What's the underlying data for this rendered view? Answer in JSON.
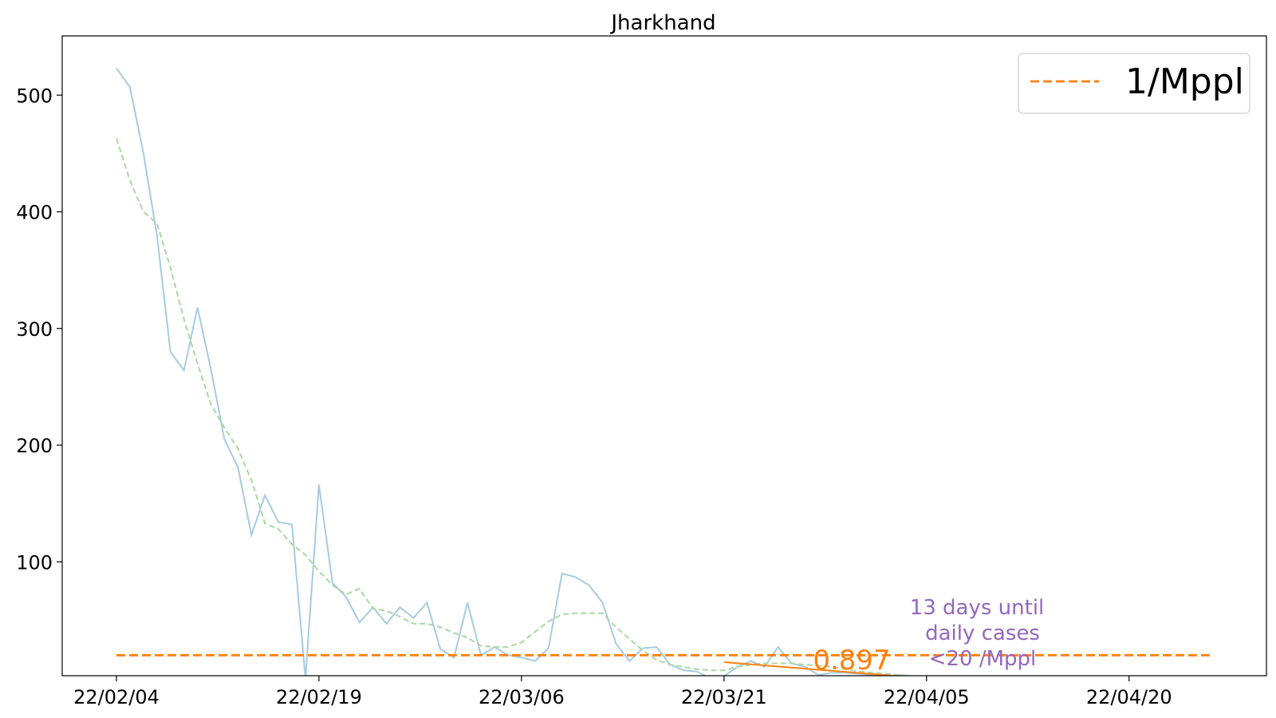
{
  "chart_data": {
    "type": "line",
    "title": "Jharkhand",
    "xlabel": "",
    "ylabel": "",
    "x_start": "22/02/04",
    "xlim_days": [
      -4,
      85
    ],
    "ylim": [
      0,
      550
    ],
    "y_ticks": [
      100,
      200,
      300,
      400,
      500
    ],
    "x_tick_days": [
      0,
      15,
      30,
      45,
      60,
      75
    ],
    "x_tick_labels": [
      "22/02/04",
      "22/02/19",
      "22/03/06",
      "22/03/21",
      "22/04/05",
      "22/04/20"
    ],
    "grid": false,
    "legend_position": "top-right",
    "series": [
      {
        "name": "",
        "color": "#a6cbe0",
        "style": "solid",
        "values": [
          523,
          507,
          450,
          380,
          280,
          264,
          318,
          265,
          205,
          181,
          123,
          157,
          134,
          132,
          0,
          166,
          82,
          70,
          48,
          61,
          47,
          61,
          52,
          65,
          25,
          18,
          65,
          20,
          27,
          20,
          18,
          15,
          26,
          90,
          87,
          80,
          65,
          30,
          15,
          26,
          27,
          12,
          7,
          6,
          0,
          2,
          10,
          15,
          10,
          27,
          13,
          10,
          3,
          5,
          5,
          4,
          3,
          2,
          3,
          2
        ]
      },
      {
        "name": "",
        "color": "#a9d8a0",
        "style": "dashed",
        "values": [
          463,
          427,
          400,
          390,
          352,
          308,
          270,
          235,
          215,
          197,
          170,
          133,
          128,
          115,
          106,
          92,
          80,
          72,
          77,
          60,
          58,
          53,
          47,
          47,
          44,
          39,
          35,
          28,
          27,
          27,
          31,
          40,
          49,
          55,
          56,
          56,
          56,
          44,
          34,
          24,
          16,
          12,
          10,
          8,
          7,
          7,
          10,
          12,
          13,
          13,
          13,
          12,
          11,
          10,
          8,
          6,
          5,
          4,
          3,
          2
        ]
      },
      {
        "name": "1/Mppl",
        "color": "#ff7f0e",
        "style": "dashed",
        "x_range_days": [
          0,
          81
        ],
        "values": [
          20,
          20
        ]
      },
      {
        "name": "",
        "color": "#ff7f0e",
        "style": "solid",
        "x_range_days": [
          45,
          59
        ],
        "values": [
          14,
          1
        ]
      },
      {
        "name": "",
        "color": "#9467bd",
        "style": "dashed",
        "x_range_days": [
          60,
          72
        ],
        "values": [
          1,
          1
        ]
      }
    ],
    "annotations": {
      "slope_value": "0.897",
      "days_until_line1": "13 days until",
      "days_until_line2": "daily cases",
      "days_until_line3": "<20 /Mppl"
    },
    "legend_entries": [
      "1/Mppl"
    ],
    "colors": {
      "raw": "#a6cbe0",
      "smooth": "#a9d8a0",
      "threshold": "#ff7f0e",
      "trend": "#ff7f0e",
      "annotation": "#9467bd"
    }
  }
}
